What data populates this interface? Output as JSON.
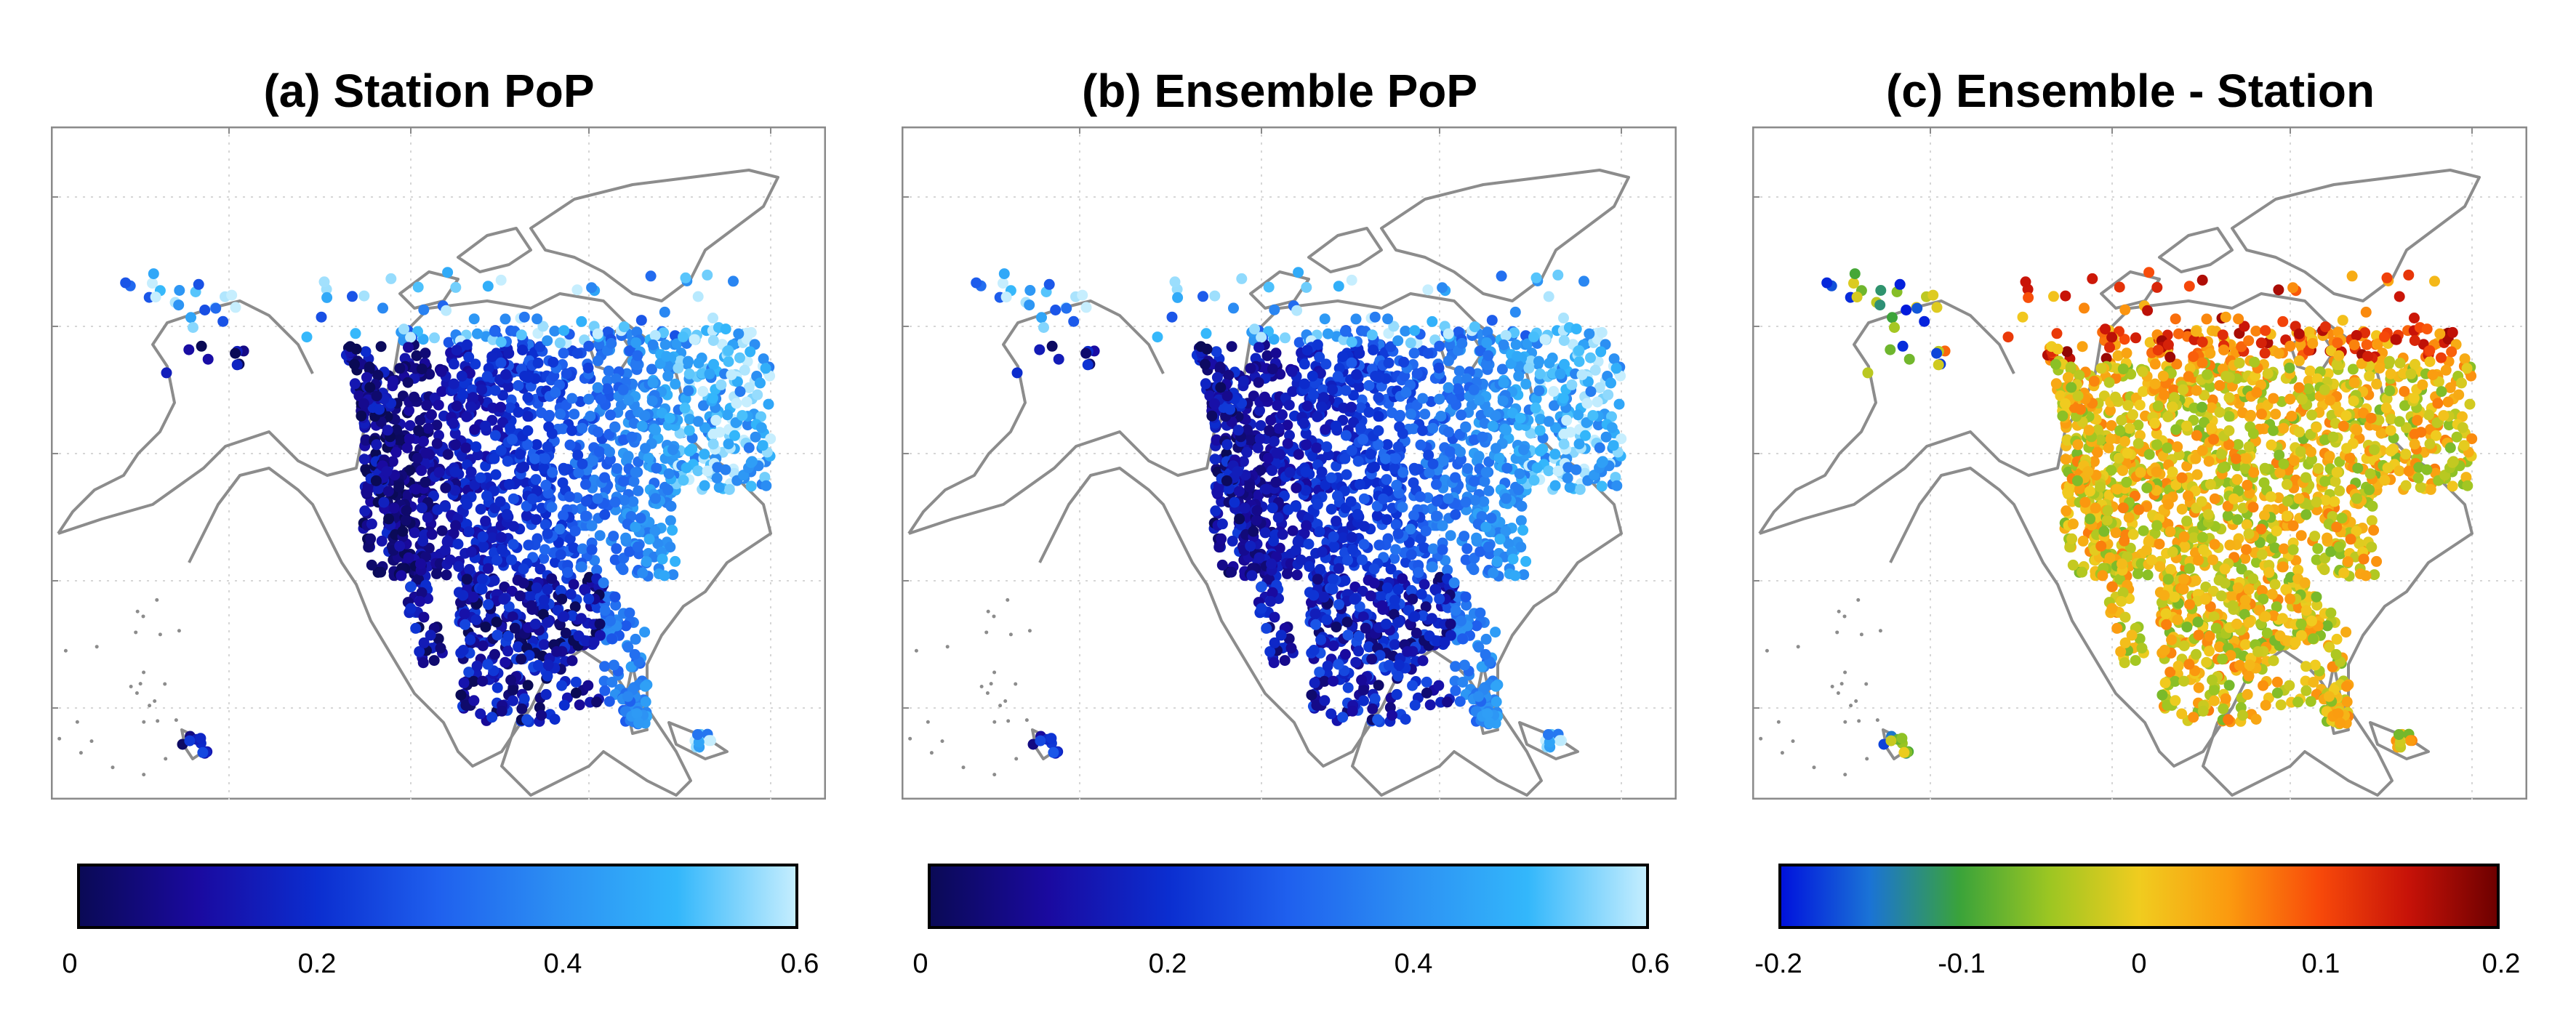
{
  "panels": [
    {
      "title": "(a) Station PoP",
      "colormap": "blues",
      "colorbar_ticks": [
        "0",
        "0.2",
        "0.4",
        "0.6"
      ],
      "colorbar_range": [
        0,
        0.6
      ],
      "colors": [
        "#0a0a55",
        "#1a0aa0",
        "#0b2ed0",
        "#1f60ee",
        "#2c8ff3",
        "#33b7fb",
        "#c6eefe"
      ]
    },
    {
      "title": "(b) Ensemble PoP",
      "colormap": "blues",
      "colorbar_ticks": [
        "0",
        "0.2",
        "0.4",
        "0.6"
      ],
      "colorbar_range": [
        0,
        0.6
      ],
      "colors": [
        "#0a0a55",
        "#1a0aa0",
        "#0b2ed0",
        "#1f60ee",
        "#2c8ff3",
        "#33b7fb",
        "#c6eefe"
      ]
    },
    {
      "title": "(c) Ensemble - Station",
      "colormap": "diverging",
      "colorbar_ticks": [
        "-0.2",
        "-0.1",
        "0",
        "0.1",
        "0.2"
      ],
      "colorbar_range": [
        -0.2,
        0.2
      ],
      "colors": [
        "#0011dd",
        "#1a73d6",
        "#3aa33a",
        "#9cc622",
        "#f0cc1f",
        "#fb9a0f",
        "#f84a0a",
        "#c71208",
        "#6c0000"
      ]
    }
  ],
  "map": {
    "outline_color": "#8c8c8c",
    "grid_color": "#d6d6d6",
    "frame_color": "#8a8a8a",
    "gridlines": "dotted"
  }
}
